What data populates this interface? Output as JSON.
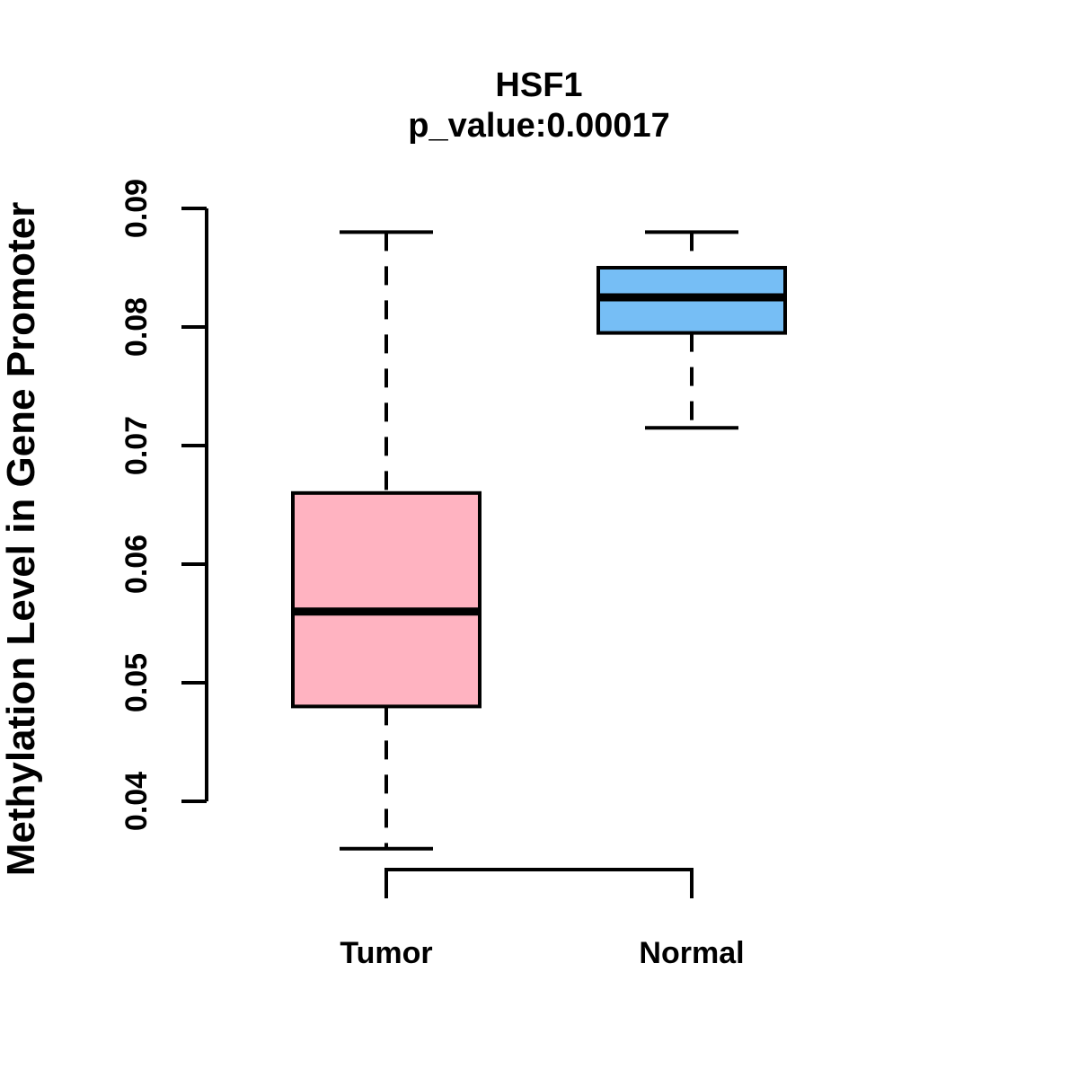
{
  "figure": {
    "title": "HSF1",
    "subtitle": "p_value:0.00017",
    "ylabel": "Methylation Level in Gene Promoter"
  },
  "chart_data": {
    "type": "box",
    "title": "HSF1",
    "subtitle": "p_value:0.00017",
    "ylabel": "Methylation Level in Gene Promoter",
    "xlabel": "",
    "categories": [
      "Tumor",
      "Normal"
    ],
    "y_ticks": [
      0.04,
      0.05,
      0.06,
      0.07,
      0.08,
      0.09
    ],
    "y_tick_labels": [
      "0.04",
      "0.05",
      "0.06",
      "0.07",
      "0.08",
      "0.09"
    ],
    "ylim": [
      0.036,
      0.09
    ],
    "grid": false,
    "legend": false,
    "background_color": "#FFFFFF",
    "stroke_color": "#000000",
    "series": [
      {
        "name": "Tumor",
        "fill_color": "#FFB3C1",
        "lower_whisker": 0.036,
        "q1": 0.048,
        "median": 0.056,
        "q3": 0.066,
        "upper_whisker": 0.088
      },
      {
        "name": "Normal",
        "fill_color": "#76BEF5",
        "lower_whisker": 0.0715,
        "q1": 0.0795,
        "median": 0.0825,
        "q3": 0.085,
        "upper_whisker": 0.088
      }
    ]
  }
}
